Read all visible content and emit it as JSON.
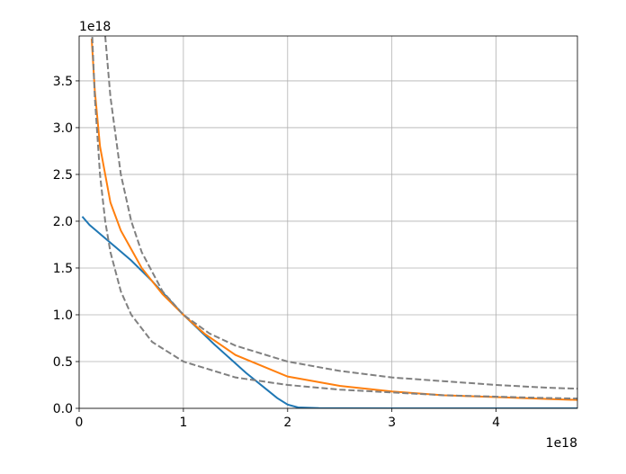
{
  "chart_data": {
    "type": "line",
    "x_offset_label": "1e18",
    "y_offset_label": "1e18",
    "xlim": [
      0,
      4.78
    ],
    "ylim": [
      0,
      3.98
    ],
    "xticks": [
      0,
      1,
      2,
      3,
      4
    ],
    "yticks": [
      {
        "value": 0,
        "label": "0.0"
      },
      0.5,
      {
        "value": 1,
        "label": "1.0"
      },
      1.5,
      {
        "value": 2,
        "label": "2.0"
      },
      2.5,
      {
        "value": 3,
        "label": "3.0"
      },
      3.5
    ],
    "grid": true,
    "series": [
      {
        "color": "#1f77b4",
        "linestyle": "solid",
        "x": [
          0.03,
          0.1,
          0.3,
          0.5,
          0.7,
          1.0,
          1.3,
          1.6,
          1.8,
          1.9,
          2.0,
          2.1,
          2.3,
          3.0,
          4.0,
          4.78
        ],
        "values": [
          2.05,
          1.96,
          1.77,
          1.58,
          1.36,
          1.0,
          0.68,
          0.38,
          0.2,
          0.11,
          0.04,
          0.01,
          0.002,
          0,
          0,
          0
        ]
      },
      {
        "color": "#ff7f0e",
        "linestyle": "solid",
        "x": [
          0.12,
          0.15,
          0.2,
          0.3,
          0.4,
          0.5,
          0.6,
          0.8,
          1.0,
          1.2,
          1.5,
          2.0,
          2.5,
          3.0,
          3.5,
          4.0,
          4.5,
          4.78
        ],
        "values": [
          3.95,
          3.4,
          2.8,
          2.2,
          1.9,
          1.7,
          1.5,
          1.22,
          1.0,
          0.8,
          0.57,
          0.34,
          0.24,
          0.18,
          0.14,
          0.12,
          0.1,
          0.09
        ]
      },
      {
        "color": "#808080",
        "linestyle": "dashed",
        "x": [
          0.25,
          0.3,
          0.4,
          0.5,
          0.6,
          0.8,
          1.0,
          1.25,
          1.5,
          2.0,
          2.5,
          3.0,
          3.5,
          4.0,
          4.5,
          4.78
        ],
        "values": [
          3.98,
          3.33,
          2.5,
          2.0,
          1.67,
          1.25,
          1.0,
          0.8,
          0.67,
          0.5,
          0.4,
          0.33,
          0.29,
          0.25,
          0.22,
          0.21
        ]
      },
      {
        "color": "#808080",
        "linestyle": "dashed",
        "x": [
          0.126,
          0.15,
          0.2,
          0.25,
          0.3,
          0.4,
          0.5,
          0.7,
          1.0,
          1.5,
          2.0,
          2.5,
          3.0,
          3.5,
          4.0,
          4.5,
          4.78
        ],
        "values": [
          3.97,
          3.33,
          2.5,
          2.0,
          1.67,
          1.25,
          1.0,
          0.71,
          0.5,
          0.33,
          0.25,
          0.2,
          0.17,
          0.14,
          0.125,
          0.11,
          0.105
        ]
      }
    ]
  }
}
